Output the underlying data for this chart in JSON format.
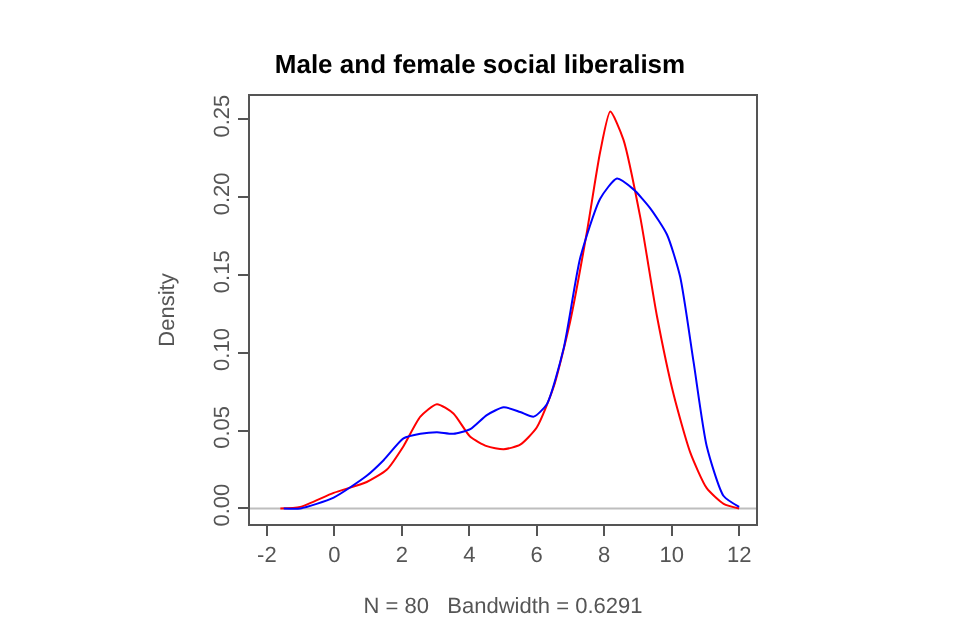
{
  "chart_data": {
    "type": "line",
    "title": "Male and female social liberalism",
    "xlabel": "N = 80   Bandwidth = 0.6291",
    "ylabel": "Density",
    "series": [
      {
        "color": "#ff0000",
        "x": [
          -1.6,
          -1.01,
          -0.02,
          0.96,
          1.56,
          2.05,
          2.55,
          3.04,
          3.53,
          4.03,
          4.52,
          5.02,
          5.51,
          6.0,
          6.5,
          6.99,
          7.49,
          7.88,
          8.18,
          8.57,
          9.07,
          9.56,
          10.06,
          10.55,
          11.04,
          11.54,
          12.0
        ],
        "values": [
          0,
          0.001,
          0.01,
          0.017,
          0.025,
          0.04,
          0.059,
          0.067,
          0.061,
          0.046,
          0.04,
          0.038,
          0.041,
          0.052,
          0.078,
          0.12,
          0.178,
          0.229,
          0.255,
          0.237,
          0.187,
          0.124,
          0.073,
          0.036,
          0.013,
          0.003,
          0
        ]
      },
      {
        "color": "#0000ff",
        "x": [
          -1.5,
          -1.01,
          -0.02,
          0.96,
          1.46,
          2.05,
          2.55,
          3.04,
          3.53,
          4.03,
          4.52,
          5.02,
          5.51,
          5.91,
          6.3,
          6.8,
          7.29,
          7.88,
          8.38,
          8.87,
          9.36,
          9.86,
          10.25,
          10.65,
          11.04,
          11.54,
          12.0
        ],
        "values": [
          0,
          0,
          0.007,
          0.021,
          0.031,
          0.045,
          0.048,
          0.049,
          0.048,
          0.051,
          0.06,
          0.065,
          0.062,
          0.059,
          0.067,
          0.103,
          0.161,
          0.199,
          0.212,
          0.205,
          0.193,
          0.176,
          0.149,
          0.094,
          0.04,
          0.008,
          0.001
        ]
      }
    ],
    "ref_lines": [
      {
        "axis": "y",
        "value": 0,
        "color": "#bebebe"
      }
    ],
    "xlim": [
      -2.5,
      12.5
    ],
    "ylim": [
      -0.01,
      0.265
    ],
    "xticks": [
      -2,
      0,
      2,
      4,
      6,
      8,
      10,
      12
    ],
    "yticks": [
      {
        "value": 0,
        "label": "0.00"
      },
      {
        "value": 0.05,
        "label": "0.05"
      },
      {
        "value": 0.1,
        "label": "0.10"
      },
      {
        "value": 0.15,
        "label": "0.15"
      },
      {
        "value": 0.2,
        "label": "0.20"
      },
      {
        "value": 0.25,
        "label": "0.25"
      }
    ],
    "grid": false,
    "marker": "none",
    "line_style": "solid"
  }
}
